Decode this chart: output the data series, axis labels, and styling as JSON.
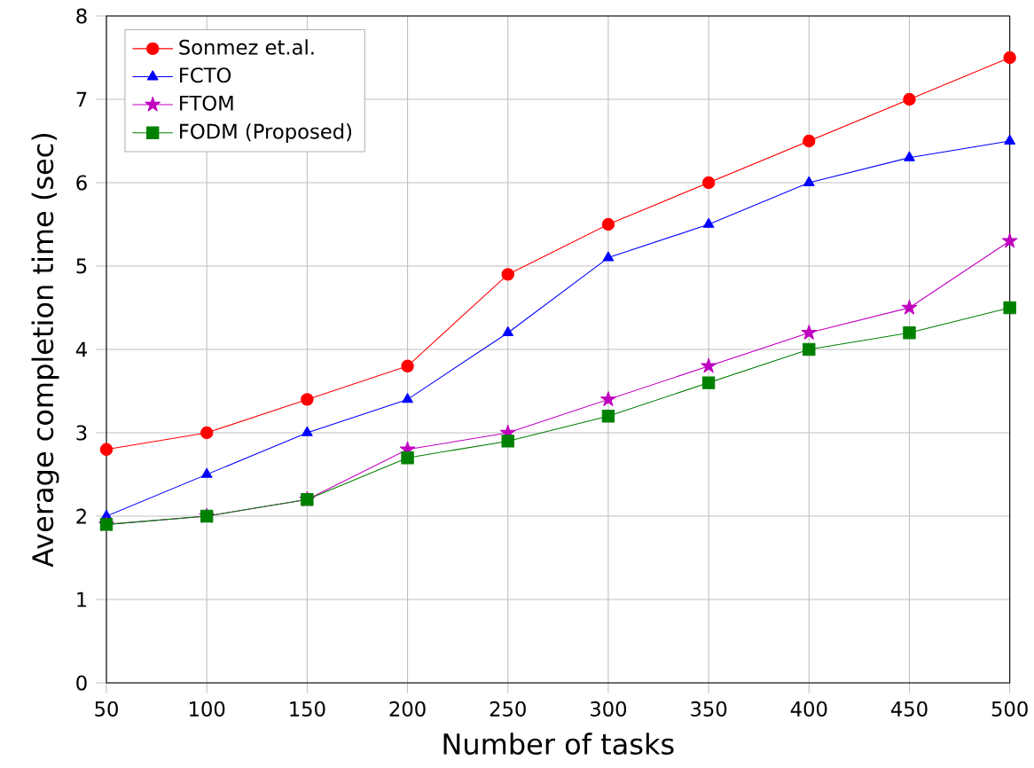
{
  "chart_data": {
    "type": "line",
    "xlabel": "Number of tasks",
    "ylabel": "Average completion time (sec)",
    "x": [
      50,
      100,
      150,
      200,
      250,
      300,
      350,
      400,
      450,
      500
    ],
    "series": [
      {
        "name": "Sonmez et.al.",
        "color": "#ff0000",
        "marker": "circle",
        "values": [
          2.8,
          3.0,
          3.4,
          3.8,
          4.9,
          5.5,
          6.0,
          6.5,
          7.0,
          7.5
        ]
      },
      {
        "name": "FCTO",
        "color": "#0000ff",
        "marker": "triangle",
        "values": [
          2.0,
          2.5,
          3.0,
          3.4,
          4.2,
          5.1,
          5.5,
          6.0,
          6.3,
          6.5
        ]
      },
      {
        "name": "FTOM",
        "color": "#bf00bf",
        "marker": "star",
        "values": [
          1.9,
          2.0,
          2.2,
          2.8,
          3.0,
          3.4,
          3.8,
          4.2,
          4.5,
          5.3
        ]
      },
      {
        "name": "FODM (Proposed)",
        "color": "#008000",
        "marker": "square",
        "values": [
          1.9,
          2.0,
          2.2,
          2.7,
          2.9,
          3.2,
          3.6,
          4.0,
          4.2,
          4.5
        ]
      }
    ],
    "xlim": [
      50,
      500
    ],
    "xticks": [
      50,
      100,
      150,
      200,
      250,
      300,
      350,
      400,
      450,
      500
    ],
    "ylim": [
      0,
      8
    ],
    "yticks": [
      0,
      1,
      2,
      3,
      4,
      5,
      6,
      7,
      8
    ],
    "grid": true,
    "legend": "top left",
    "line_style": "solid"
  }
}
